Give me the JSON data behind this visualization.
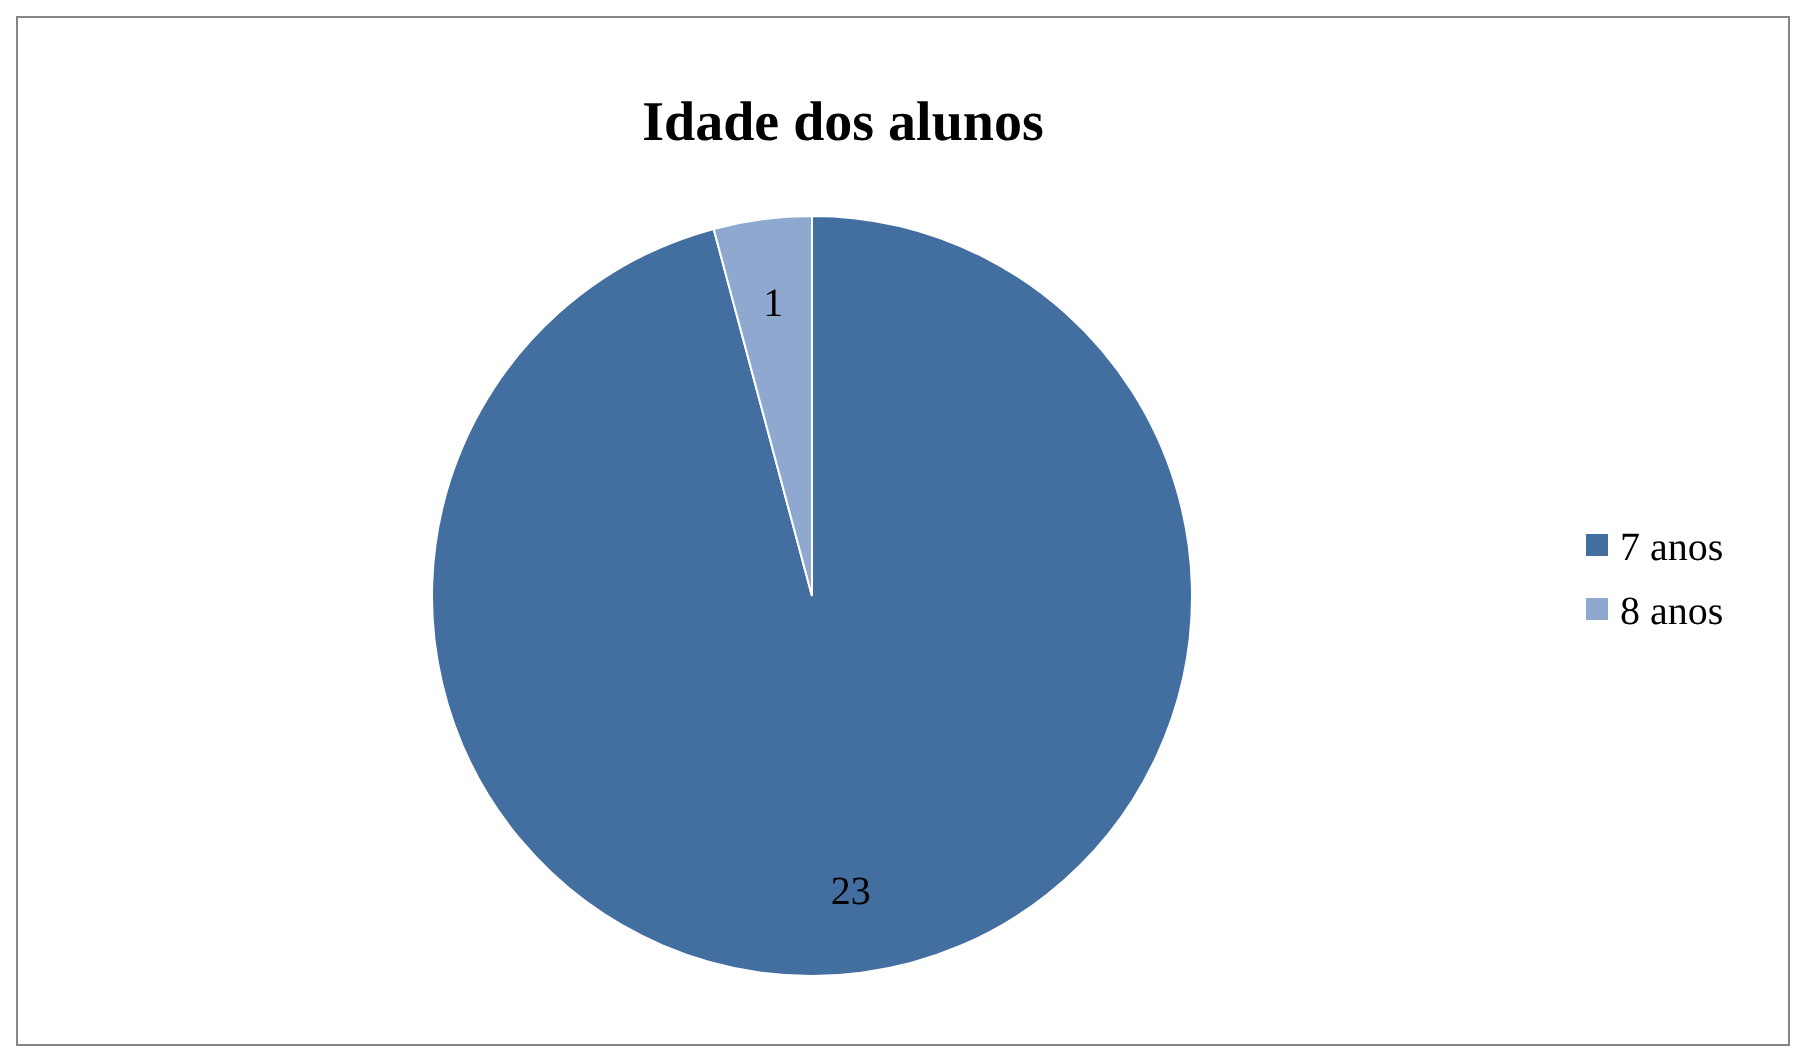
{
  "chart_data": {
    "type": "pie",
    "title": "Idade dos alunos",
    "categories": [
      "7 anos",
      "8 anos"
    ],
    "values": [
      23,
      1
    ],
    "colors": [
      "#436ea0",
      "#8fa8cf"
    ],
    "data_labels": true,
    "legend": "right"
  }
}
